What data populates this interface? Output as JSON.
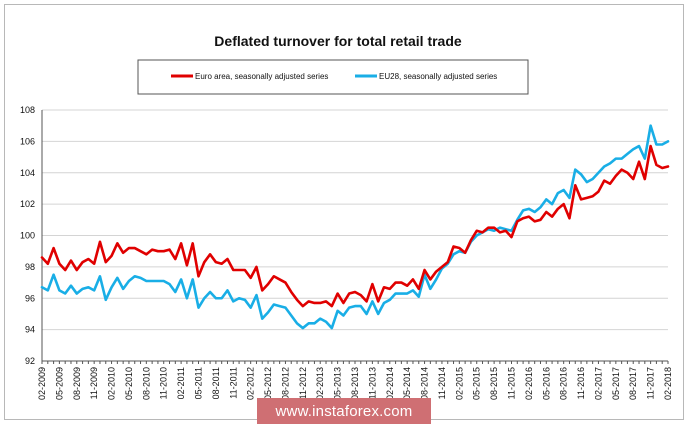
{
  "chart_data": {
    "type": "line",
    "title": "Deflated turnover for total retail trade",
    "xlabel": "",
    "ylabel": "",
    "ylim": [
      92,
      108
    ],
    "yticks": [
      92,
      94,
      96,
      98,
      100,
      102,
      104,
      106,
      108
    ],
    "grid": "horizontal",
    "legend": "top-center",
    "x": [
      "02-2009",
      "03-2009",
      "04-2009",
      "05-2009",
      "06-2009",
      "07-2009",
      "08-2009",
      "09-2009",
      "10-2009",
      "11-2009",
      "12-2009",
      "01-2010",
      "02-2010",
      "03-2010",
      "04-2010",
      "05-2010",
      "06-2010",
      "07-2010",
      "08-2010",
      "09-2010",
      "10-2010",
      "11-2010",
      "12-2010",
      "01-2011",
      "02-2011",
      "03-2011",
      "04-2011",
      "05-2011",
      "06-2011",
      "07-2011",
      "08-2011",
      "09-2011",
      "10-2011",
      "11-2011",
      "12-2011",
      "01-2012",
      "02-2012",
      "03-2012",
      "04-2012",
      "05-2012",
      "06-2012",
      "07-2012",
      "08-2012",
      "09-2012",
      "10-2012",
      "11-2012",
      "12-2012",
      "01-2013",
      "02-2013",
      "03-2013",
      "04-2013",
      "05-2013",
      "06-2013",
      "07-2013",
      "08-2013",
      "09-2013",
      "10-2013",
      "11-2013",
      "12-2013",
      "01-2014",
      "02-2014",
      "03-2014",
      "04-2014",
      "05-2014",
      "06-2014",
      "07-2014",
      "08-2014",
      "09-2014",
      "10-2014",
      "11-2014",
      "12-2014",
      "01-2015",
      "02-2015",
      "03-2015",
      "04-2015",
      "05-2015",
      "06-2015",
      "07-2015",
      "08-2015",
      "09-2015",
      "10-2015",
      "11-2015",
      "12-2015",
      "01-2016",
      "02-2016",
      "03-2016",
      "04-2016",
      "05-2016",
      "06-2016",
      "07-2016",
      "08-2016",
      "09-2016",
      "10-2016",
      "11-2016",
      "12-2016",
      "01-2017",
      "02-2017",
      "03-2017",
      "04-2017",
      "05-2017",
      "06-2017",
      "07-2017",
      "08-2017",
      "09-2017",
      "10-2017",
      "11-2017",
      "12-2017",
      "01-2018",
      "02-2018"
    ],
    "xtick_labels": [
      "02-2009",
      "05-2009",
      "08-2009",
      "11-2009",
      "02-2010",
      "05-2010",
      "08-2010",
      "11-2010",
      "02-2011",
      "05-2011",
      "08-2011",
      "11-2011",
      "02-2012",
      "05-2012",
      "08-2012",
      "11-2012",
      "02-2013",
      "05-2013",
      "08-2013",
      "11-2013",
      "02-2014",
      "05-2014",
      "08-2014",
      "11-2014",
      "02-2015",
      "05-2015",
      "08-2015",
      "11-2015",
      "02-2016",
      "05-2016",
      "08-2016",
      "11-2016",
      "02-2017",
      "05-2017",
      "08-2017",
      "11-2017",
      "02-2018"
    ],
    "series": [
      {
        "name": "Euro area, seasonally adjusted series",
        "color": "#e00000",
        "values": [
          98.6,
          98.2,
          99.2,
          98.2,
          97.8,
          98.4,
          97.8,
          98.3,
          98.5,
          98.2,
          99.6,
          98.3,
          98.7,
          99.5,
          98.9,
          99.2,
          99.2,
          99.0,
          98.8,
          99.1,
          99.0,
          99.0,
          99.1,
          98.5,
          99.5,
          98.1,
          99.5,
          97.4,
          98.3,
          98.8,
          98.3,
          98.2,
          98.5,
          97.8,
          97.8,
          97.8,
          97.3,
          98.0,
          96.5,
          96.9,
          97.4,
          97.2,
          97.0,
          96.4,
          95.9,
          95.5,
          95.8,
          95.7,
          95.7,
          95.8,
          95.5,
          96.3,
          95.7,
          96.3,
          96.4,
          96.2,
          95.8,
          96.9,
          95.8,
          96.7,
          96.6,
          97.0,
          97.0,
          96.8,
          97.2,
          96.6,
          97.8,
          97.2,
          97.7,
          98.0,
          98.3,
          99.3,
          99.2,
          98.9,
          99.7,
          100.3,
          100.2,
          100.5,
          100.5,
          100.2,
          100.3,
          99.9,
          100.9,
          101.1,
          101.2,
          100.9,
          101.0,
          101.5,
          101.2,
          101.7,
          102.0,
          101.1,
          103.2,
          102.3,
          102.4,
          102.5,
          102.8,
          103.5,
          103.3,
          103.8,
          104.2,
          104.0,
          103.6,
          104.7,
          103.6,
          105.7,
          104.5,
          104.3,
          104.4
        ]
      },
      {
        "name": "EU28, seasonally adjusted series",
        "color": "#19aee6",
        "values": [
          96.7,
          96.5,
          97.5,
          96.5,
          96.3,
          96.8,
          96.3,
          96.6,
          96.7,
          96.5,
          97.4,
          95.9,
          96.7,
          97.3,
          96.6,
          97.1,
          97.4,
          97.3,
          97.1,
          97.1,
          97.1,
          97.1,
          96.9,
          96.4,
          97.2,
          96.0,
          97.2,
          95.4,
          96.0,
          96.4,
          96.0,
          96.0,
          96.5,
          95.8,
          96.0,
          95.9,
          95.4,
          96.2,
          94.7,
          95.1,
          95.6,
          95.5,
          95.4,
          94.9,
          94.4,
          94.1,
          94.4,
          94.4,
          94.7,
          94.5,
          94.1,
          95.2,
          94.9,
          95.4,
          95.5,
          95.5,
          95.0,
          95.8,
          95.0,
          95.7,
          95.9,
          96.3,
          96.3,
          96.3,
          96.5,
          96.1,
          97.5,
          96.6,
          97.2,
          97.9,
          98.2,
          98.8,
          99.0,
          98.9,
          99.6,
          100.0,
          100.2,
          100.4,
          100.3,
          100.5,
          100.4,
          100.3,
          101.0,
          101.6,
          101.7,
          101.5,
          101.8,
          102.3,
          102.0,
          102.7,
          102.9,
          102.4,
          104.2,
          103.9,
          103.4,
          103.6,
          104.0,
          104.4,
          104.6,
          104.9,
          104.9,
          105.2,
          105.5,
          105.7,
          104.9,
          107.0,
          105.8,
          105.8,
          106.0
        ]
      }
    ]
  },
  "watermark": "www.instaforex.com"
}
